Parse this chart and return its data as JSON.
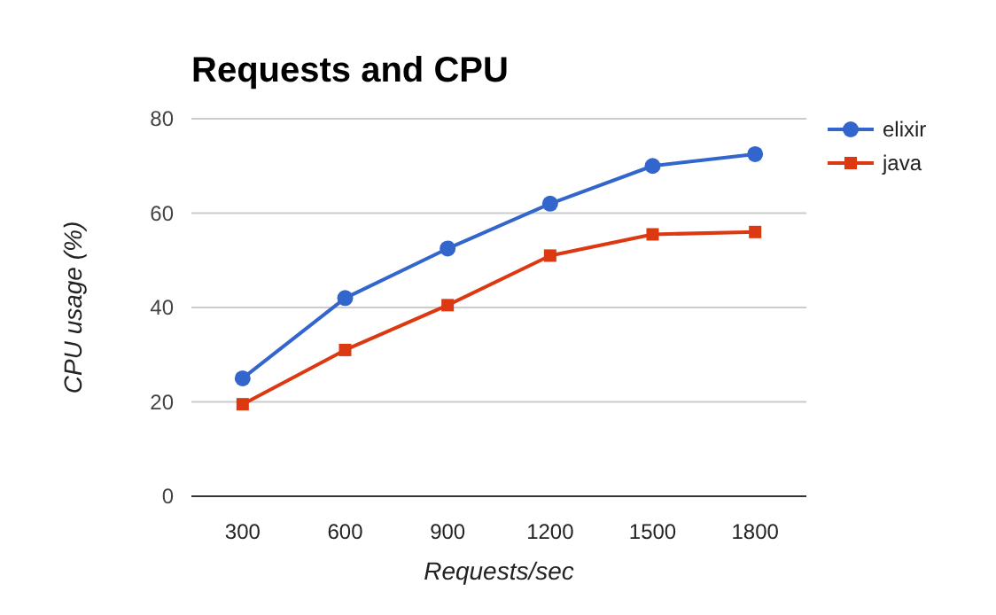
{
  "chart_data": {
    "type": "line",
    "title": "Requests and CPU",
    "xlabel": "Requests/sec",
    "ylabel": "CPU usage (%)",
    "categories": [
      "300",
      "600",
      "900",
      "1200",
      "1500",
      "1800"
    ],
    "series": [
      {
        "name": "elixir",
        "color": "#3366cc",
        "marker": "circle",
        "values": [
          25,
          42,
          52.5,
          62,
          70,
          72.5
        ]
      },
      {
        "name": "java",
        "color": "#dc3912",
        "marker": "square",
        "values": [
          19.5,
          31,
          40.5,
          51,
          55.5,
          56
        ]
      }
    ],
    "ylim": [
      0,
      80
    ],
    "yticks": [
      0,
      20,
      40,
      60,
      80
    ],
    "grid": "y",
    "legend": "right",
    "line_style": "solid"
  }
}
